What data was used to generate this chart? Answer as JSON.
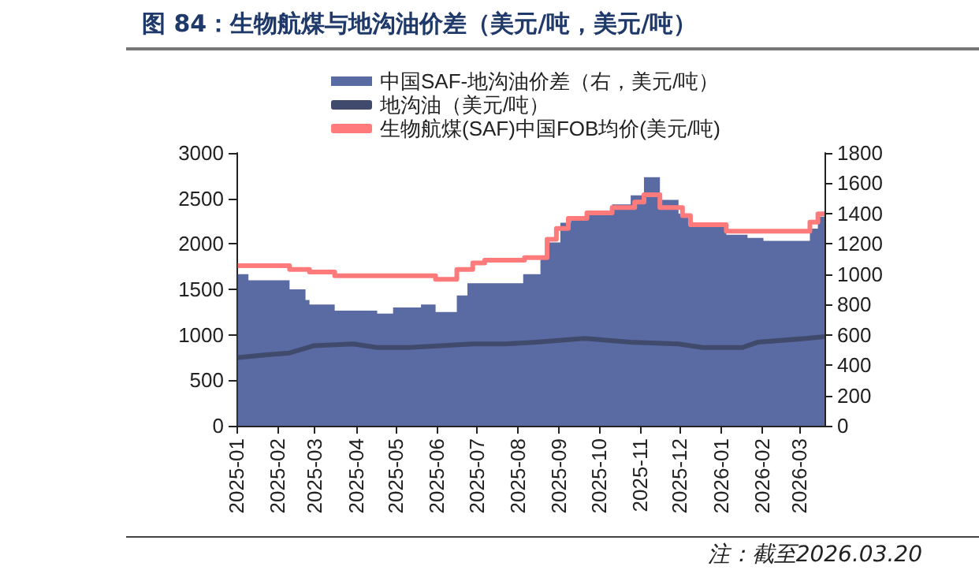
{
  "chart_data": {
    "type": "line",
    "title": "图 84：生物航煤与地沟油价差（美元/吨，美元/吨）",
    "annotations": [
      "注：截至2026.03.20"
    ],
    "xlim": [
      "2025-01-01",
      "2026-03-20"
    ],
    "xticks": [
      "2025-01",
      "2025-02",
      "2025-03",
      "2025-04",
      "2025-05",
      "2025-06",
      "2025-07",
      "2025-08",
      "2025-09",
      "2025-10",
      "2025-11",
      "2025-12",
      "2026-01",
      "2026-02",
      "2026-03"
    ],
    "ylim": [
      0,
      3000
    ],
    "yticks": [
      0,
      500,
      1000,
      1500,
      2000,
      2500,
      3000
    ],
    "y2lim": [
      0,
      1800
    ],
    "y2ticks": [
      0,
      200,
      400,
      600,
      800,
      1000,
      1200,
      1400,
      1600,
      1800
    ],
    "grid": false,
    "legend": "top",
    "marker": "none",
    "series": [
      {
        "name": "中国SAF-地沟油价差（右，美元/吨）",
        "type": "area",
        "axis": "y2",
        "color": "#5a6aa2",
        "x": [
          "2025-01-02",
          "2025-01-10",
          "2025-02-10",
          "2025-02-22",
          "2025-02-25",
          "2025-03-16",
          "2025-04-17",
          "2025-04-29",
          "2025-05-20",
          "2025-05-31",
          "2025-06-16",
          "2025-06-24",
          "2025-07-22",
          "2025-08-05",
          "2025-08-18",
          "2025-08-24",
          "2025-09-02",
          "2025-09-10",
          "2025-09-22",
          "2025-10-11",
          "2025-10-25",
          "2025-11-04",
          "2025-11-16",
          "2025-11-30",
          "2025-12-09",
          "2026-01-05",
          "2026-01-21",
          "2026-02-02",
          "2026-03-09",
          "2026-03-15",
          "2026-03-20"
        ],
        "values": [
          1000,
          960,
          900,
          830,
          800,
          760,
          740,
          780,
          800,
          750,
          860,
          940,
          940,
          1000,
          1110,
          1210,
          1340,
          1360,
          1400,
          1460,
          1520,
          1640,
          1490,
          1400,
          1340,
          1260,
          1240,
          1220,
          1300,
          1380,
          1380
        ]
      },
      {
        "name": "地沟油（美元/吨）",
        "type": "line",
        "color": "#404a6c",
        "x": [
          "2025-01-02",
          "2025-01-24",
          "2025-02-10",
          "2025-02-28",
          "2025-03-30",
          "2025-04-17",
          "2025-05-11",
          "2025-06-04",
          "2025-06-28",
          "2025-07-22",
          "2025-08-15",
          "2025-09-20",
          "2025-10-25",
          "2025-11-30",
          "2025-12-18",
          "2026-01-17",
          "2026-01-29",
          "2026-03-06",
          "2026-03-20"
        ],
        "values": [
          750,
          780,
          800,
          880,
          900,
          860,
          860,
          880,
          900,
          900,
          920,
          960,
          920,
          900,
          860,
          860,
          920,
          960,
          980
        ]
      },
      {
        "name": "生物航煤(SAF)中国FOB均价(美元/吨)",
        "type": "step",
        "color": "#ff7b7b",
        "x": [
          "2025-01-02",
          "2025-02-10",
          "2025-02-25",
          "2025-03-16",
          "2025-05-31",
          "2025-06-16",
          "2025-06-28",
          "2025-07-07",
          "2025-08-06",
          "2025-08-23",
          "2025-08-30",
          "2025-09-08",
          "2025-09-22",
          "2025-10-11",
          "2025-10-28",
          "2025-11-04",
          "2025-11-16",
          "2025-12-03",
          "2025-12-09",
          "2026-01-05",
          "2026-03-09",
          "2026-03-15",
          "2026-03-20"
        ],
        "values": [
          1760,
          1720,
          1690,
          1650,
          1610,
          1720,
          1790,
          1820,
          1850,
          2050,
          2170,
          2280,
          2340,
          2400,
          2460,
          2540,
          2400,
          2310,
          2210,
          2140,
          2240,
          2330,
          2330
        ]
      }
    ]
  }
}
